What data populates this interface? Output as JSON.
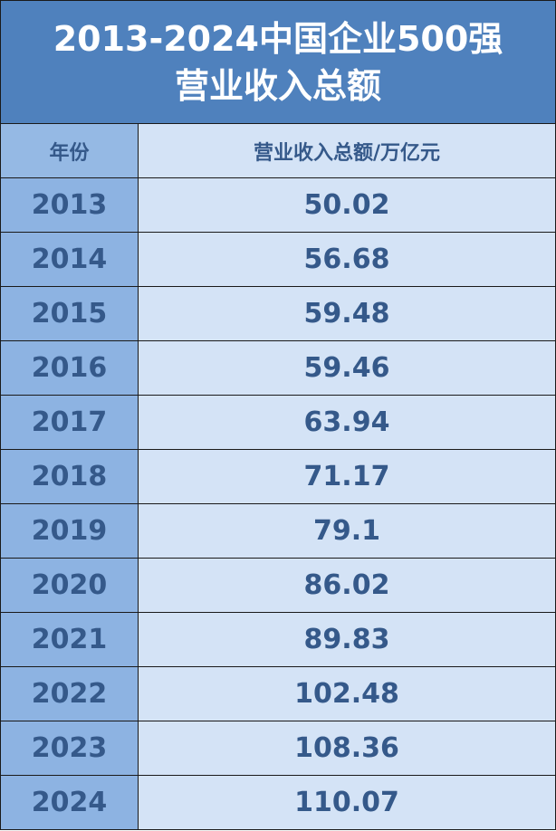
{
  "title": {
    "line1": "2013-2024中国企业500强",
    "line2": "营业收入总额"
  },
  "columns": [
    "年份",
    "营业收入总额/万亿元"
  ],
  "rows": [
    {
      "year": "2013",
      "value": "50.02"
    },
    {
      "year": "2014",
      "value": "56.68"
    },
    {
      "year": "2015",
      "value": "59.48"
    },
    {
      "year": "2016",
      "value": "59.46"
    },
    {
      "year": "2017",
      "value": "63.94"
    },
    {
      "year": "2018",
      "value": "71.17"
    },
    {
      "year": "2019",
      "value": "79.1"
    },
    {
      "year": "2020",
      "value": "86.02"
    },
    {
      "year": "2021",
      "value": "89.83"
    },
    {
      "year": "2022",
      "value": "102.48"
    },
    {
      "year": "2023",
      "value": "108.36"
    },
    {
      "year": "2024",
      "value": "110.07"
    }
  ],
  "colors": {
    "title_bg": "#4f81bd",
    "year_bg": "#8db3e2",
    "value_bg": "#d4e3f6",
    "text": "#35598a"
  }
}
